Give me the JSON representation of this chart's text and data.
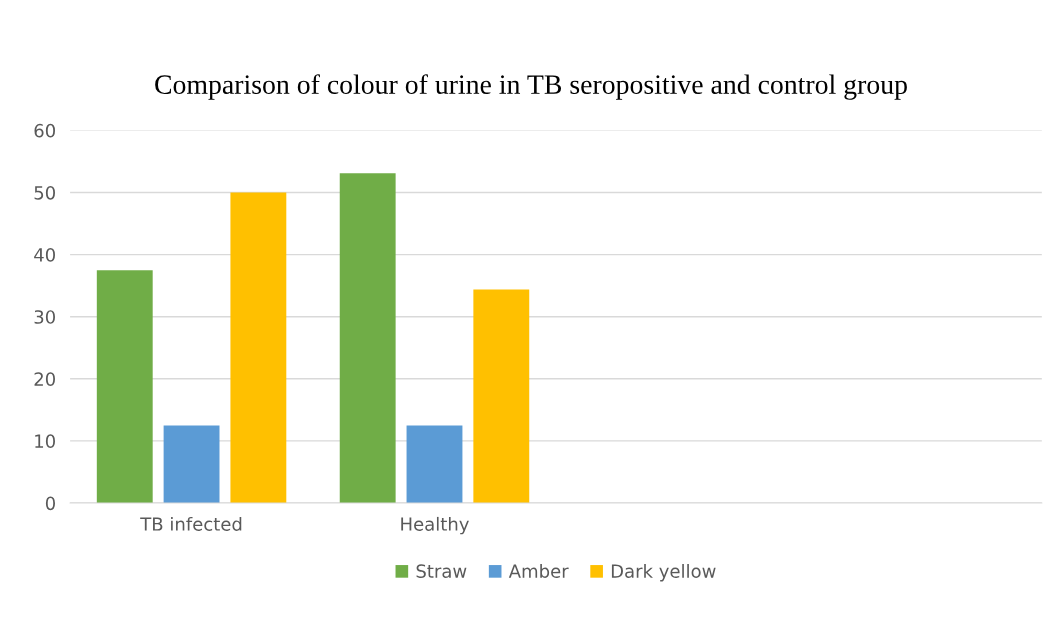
{
  "chart_data": {
    "type": "bar",
    "title": "Comparison of colour of urine in TB seropositive and control group",
    "categories": [
      "TB infected",
      "Healthy",
      null,
      null
    ],
    "series": [
      {
        "name": "Straw",
        "color": "#70ad47",
        "values": [
          37.5,
          53.1,
          null,
          null
        ]
      },
      {
        "name": "Amber",
        "color": "#5b9bd5",
        "values": [
          12.5,
          12.5,
          null,
          null
        ]
      },
      {
        "name": "Dark yellow",
        "color": "#ffc000",
        "values": [
          50,
          34.4,
          null,
          null
        ]
      }
    ],
    "ylim": [
      0,
      60
    ],
    "yticks": [
      0,
      10,
      20,
      30,
      40,
      50,
      60
    ],
    "grid": "y",
    "legend": "bottom"
  }
}
